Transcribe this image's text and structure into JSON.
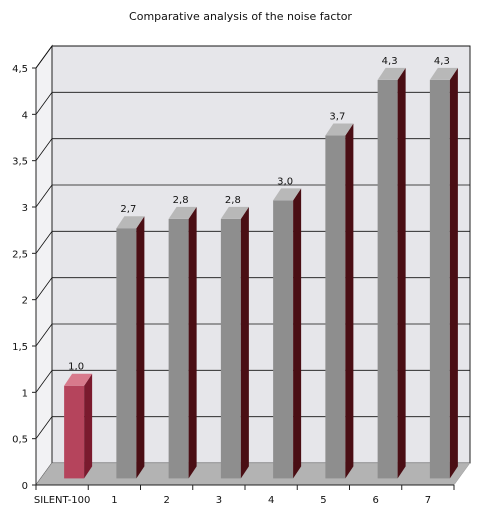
{
  "chart_data": {
    "type": "bar",
    "title": "Comparative analysis of the noise factor",
    "xlabel": "",
    "ylabel": "",
    "categories": [
      "SILENT-100",
      "1",
      "2",
      "3",
      "4",
      "5",
      "6",
      "7"
    ],
    "values": [
      1.0,
      2.7,
      2.8,
      2.8,
      3.0,
      3.7,
      4.3,
      4.3
    ],
    "value_labels": [
      "1,0",
      "2,7",
      "2,8",
      "2,8",
      "3,0",
      "3,7",
      "4,3",
      "4,3"
    ],
    "y_ticks": [
      0,
      0.5,
      1,
      1.5,
      2,
      2.5,
      3,
      3.5,
      4,
      4.5
    ],
    "y_tick_labels": [
      "0",
      "0,5",
      "1",
      "1,5",
      "2",
      "2,5",
      "3",
      "3,5",
      "4",
      "4,5"
    ],
    "ylim": [
      0,
      4.5
    ],
    "grid": true,
    "colors": {
      "highlight_bar": "#b5445c",
      "highlight_side": "#7a1a2e",
      "highlight_top": "#d87a8c",
      "bar": "#8e8e8e",
      "bar_side": "#4a0e14",
      "bar_top": "#b8b8b8",
      "wall": "#e6e6ea",
      "floor": "#b3b3b3",
      "gridline": "#111111"
    }
  }
}
